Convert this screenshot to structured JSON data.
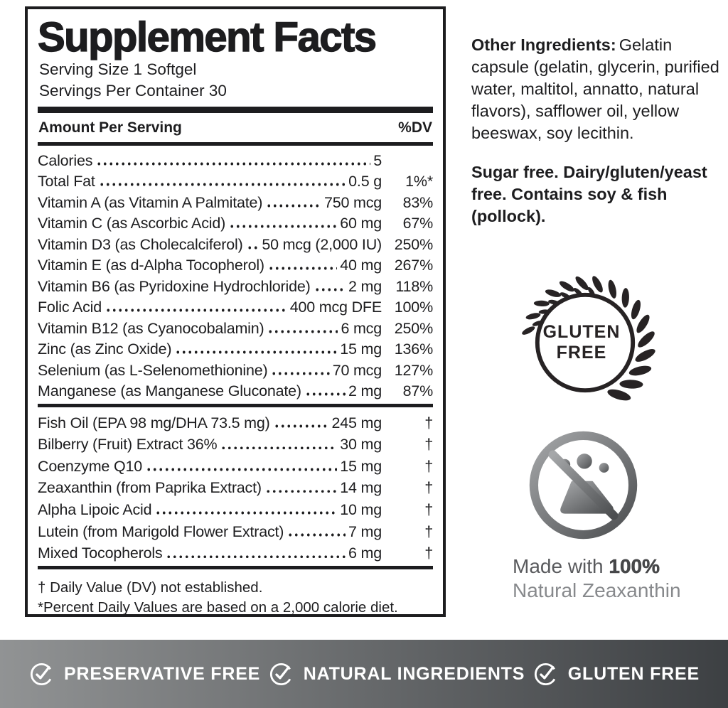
{
  "colors": {
    "label_text": "#1d1d1f",
    "background": "#ffffff",
    "icon_gray_light": "#a5a7a9",
    "icon_gray_dark": "#4c4e50"
  },
  "supplement_facts": {
    "title": "Supplement Facts",
    "serving_size": "Serving Size 1 Softgel",
    "servings_per_container": "Servings Per Container 30",
    "columns": {
      "amount": "Amount Per Serving",
      "dv": "%DV"
    },
    "main_rows": [
      {
        "name": "Calories",
        "amount": "5",
        "dv": ""
      },
      {
        "name": "Total Fat",
        "amount": "0.5 g",
        "dv": "1%*"
      },
      {
        "name": "Vitamin A (as Vitamin A Palmitate)",
        "amount": "750 mcg",
        "dv": "83%"
      },
      {
        "name": "Vitamin C (as Ascorbic Acid)",
        "amount": "60 mg",
        "dv": "67%"
      },
      {
        "name": "Vitamin D3 (as Cholecalciferol)",
        "amount": "50 mcg (2,000 IU)",
        "dv": "250%"
      },
      {
        "name": "Vitamin E (as d-Alpha Tocopherol)",
        "amount": "40 mg",
        "dv": "267%"
      },
      {
        "name": "Vitamin B6 (as Pyridoxine Hydrochloride)",
        "amount": "2 mg",
        "dv": "118%"
      },
      {
        "name": "Folic Acid",
        "amount": "400 mcg DFE",
        "dv": "100%"
      },
      {
        "name": "Vitamin B12 (as Cyanocobalamin)",
        "amount": "6 mcg",
        "dv": "250%"
      },
      {
        "name": "Zinc (as Zinc Oxide)",
        "amount": "15 mg",
        "dv": "136%"
      },
      {
        "name": "Selenium (as L-Selenomethionine)",
        "amount": "70 mcg",
        "dv": "127%"
      },
      {
        "name": "Manganese (as Manganese Gluconate)",
        "amount": "2 mg",
        "dv": "87%"
      }
    ],
    "secondary_rows": [
      {
        "name": "Fish Oil (EPA 98 mg/DHA 73.5 mg)",
        "amount": "245 mg",
        "dv": "†"
      },
      {
        "name": "Bilberry (Fruit) Extract 36%",
        "amount": "30 mg",
        "dv": "†"
      },
      {
        "name": "Coenzyme Q10",
        "amount": "15 mg",
        "dv": "†"
      },
      {
        "name": "Zeaxanthin (from Paprika Extract)",
        "amount": "14 mg",
        "dv": "†"
      },
      {
        "name": "Alpha Lipoic Acid",
        "amount": "10 mg",
        "dv": "†"
      },
      {
        "name": "Lutein (from Marigold Flower Extract)",
        "amount": "7 mg",
        "dv": "†"
      },
      {
        "name": "Mixed Tocopherols",
        "amount": "6 mg",
        "dv": "†"
      }
    ],
    "footnotes": [
      "† Daily Value (DV) not established.",
      "*Percent Daily Values are based on a 2,000 calorie diet."
    ]
  },
  "right_column": {
    "other_ingredients_label": "Other Ingredients:",
    "other_ingredients_text": "Gelatin capsule (gelatin, glycerin, purified water, maltitol, annatto, natural flavors), safflower oil, yellow beeswax, soy lecithin.",
    "allergen_text": "Sugar free. Dairy/gluten/yeast free. Contains soy & fish (pollock).",
    "gluten_free_badge": {
      "icon": "wheat-laurel-icon",
      "line1": "GLUTEN",
      "line2": "FREE"
    },
    "zeaxanthin_claim": {
      "icon": "no-synthetic-flask-icon",
      "prefix": "Made with ",
      "highlight": "100%",
      "line2": "Natural Zeaxanthin"
    }
  },
  "bottom_banner": {
    "items": [
      {
        "icon": "check-circle-icon",
        "label": "PRESERVATIVE FREE"
      },
      {
        "icon": "check-circle-icon",
        "label": "NATURAL INGREDIENTS"
      },
      {
        "icon": "check-circle-icon",
        "label": "GLUTEN FREE"
      }
    ],
    "colors": {
      "gradient_left": "#919394",
      "gradient_right": "#3d4043",
      "text": "#ffffff"
    }
  }
}
